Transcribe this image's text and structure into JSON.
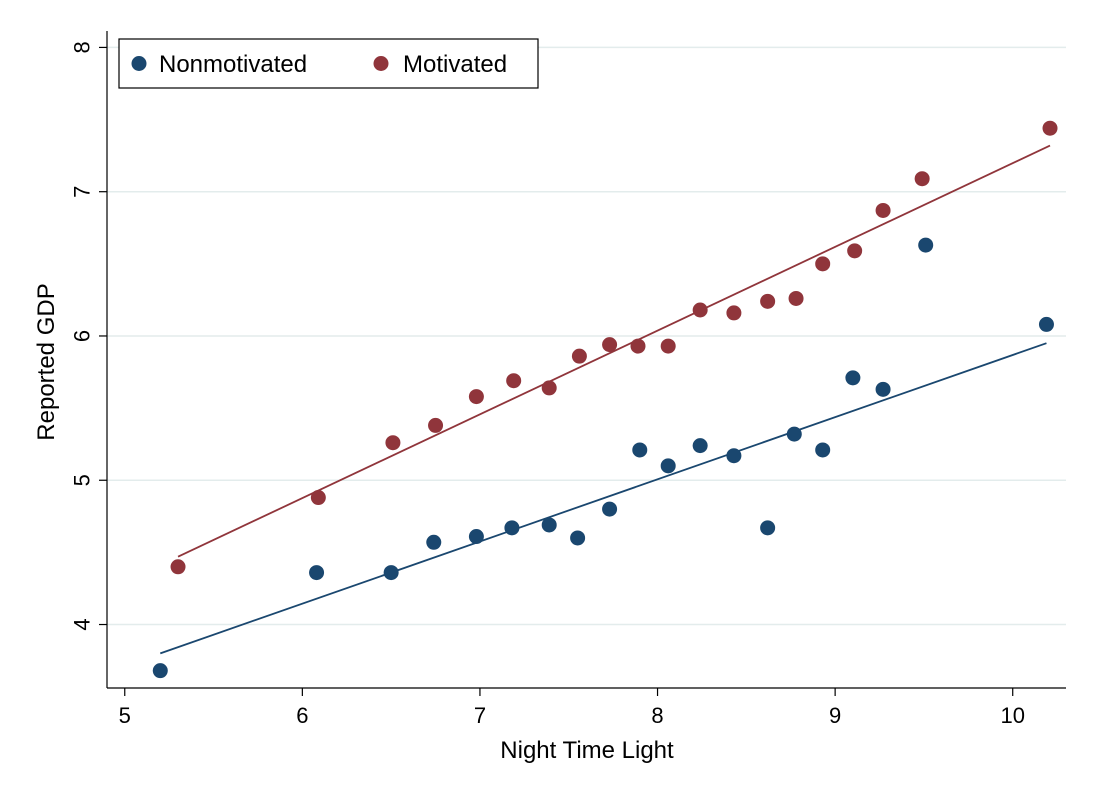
{
  "chart_data": {
    "type": "scatter",
    "title": "",
    "xlabel": "Night Time Light",
    "ylabel": "Reported GDP",
    "xlim": [
      4.9,
      10.3
    ],
    "ylim": [
      3.56,
      8.1
    ],
    "x_ticks": [
      5,
      6,
      7,
      8,
      9,
      10
    ],
    "y_ticks": [
      4,
      5,
      6,
      7,
      8
    ],
    "grid": true,
    "legend_position": "top-left",
    "series": [
      {
        "name": "Nonmotivated",
        "color": "#1a476f",
        "points": [
          [
            5.2,
            3.68
          ],
          [
            6.08,
            4.36
          ],
          [
            6.5,
            4.36
          ],
          [
            6.74,
            4.57
          ],
          [
            6.98,
            4.61
          ],
          [
            7.18,
            4.67
          ],
          [
            7.39,
            4.69
          ],
          [
            7.55,
            4.6
          ],
          [
            7.73,
            4.8
          ],
          [
            7.9,
            5.21
          ],
          [
            8.06,
            5.1
          ],
          [
            8.24,
            5.24
          ],
          [
            8.43,
            5.17
          ],
          [
            8.62,
            4.67
          ],
          [
            8.77,
            5.32
          ],
          [
            8.93,
            5.21
          ],
          [
            9.1,
            5.71
          ],
          [
            9.27,
            5.63
          ],
          [
            9.51,
            6.63
          ],
          [
            10.19,
            6.08
          ]
        ],
        "fit": [
          [
            5.2,
            3.8
          ],
          [
            10.19,
            5.95
          ]
        ]
      },
      {
        "name": "Motivated",
        "color": "#90353b",
        "points": [
          [
            5.3,
            4.4
          ],
          [
            6.09,
            4.88
          ],
          [
            6.51,
            5.26
          ],
          [
            6.75,
            5.38
          ],
          [
            6.98,
            5.58
          ],
          [
            7.19,
            5.69
          ],
          [
            7.39,
            5.64
          ],
          [
            7.56,
            5.86
          ],
          [
            7.73,
            5.94
          ],
          [
            7.89,
            5.93
          ],
          [
            8.06,
            5.93
          ],
          [
            8.24,
            6.18
          ],
          [
            8.43,
            6.16
          ],
          [
            8.62,
            6.24
          ],
          [
            8.78,
            6.26
          ],
          [
            8.93,
            6.5
          ],
          [
            9.11,
            6.59
          ],
          [
            9.27,
            6.87
          ],
          [
            9.49,
            7.09
          ],
          [
            10.21,
            7.44
          ]
        ],
        "fit": [
          [
            5.3,
            4.47
          ],
          [
            10.21,
            7.32
          ]
        ]
      }
    ]
  }
}
